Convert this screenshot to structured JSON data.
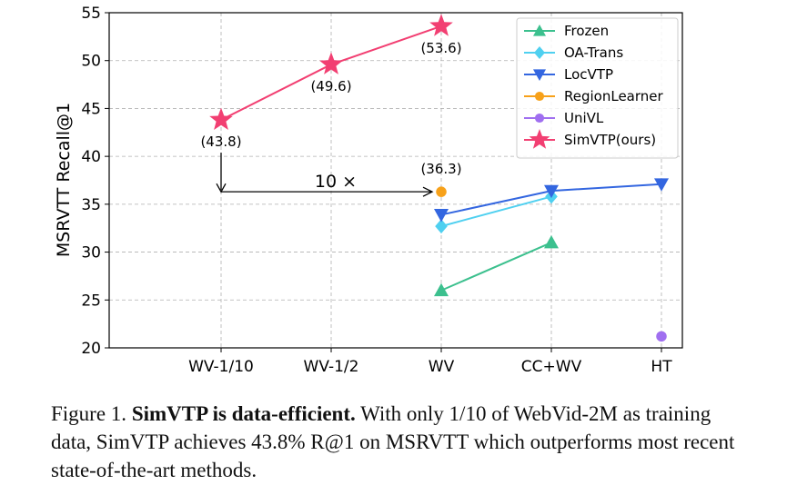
{
  "chart_data": {
    "type": "line",
    "categories": [
      "WV-1/10",
      "WV-1/2",
      "WV",
      "CC+WV",
      "HT"
    ],
    "ylabel": "MSRVTT  Recall@1",
    "xlabel": "",
    "ylim": [
      20,
      55
    ],
    "yticks": [
      "20",
      "25",
      "30",
      "35",
      "40",
      "45",
      "50",
      "55"
    ],
    "grid": true,
    "legend_position": "top-right",
    "series": [
      {
        "name": "Frozen",
        "color": "#3cc08e",
        "marker": "triangle-up",
        "points": [
          {
            "x": "WV",
            "y": 26.0
          },
          {
            "x": "CC+WV",
            "y": 31.0
          }
        ]
      },
      {
        "name": "OA-Trans",
        "color": "#4fd0f0",
        "marker": "diamond",
        "points": [
          {
            "x": "WV",
            "y": 32.7
          },
          {
            "x": "CC+WV",
            "y": 35.8
          }
        ]
      },
      {
        "name": "LocVTP",
        "color": "#3366e0",
        "marker": "triangle-down",
        "points": [
          {
            "x": "WV",
            "y": 33.9
          },
          {
            "x": "CC+WV",
            "y": 36.4
          },
          {
            "x": "HT",
            "y": 37.1
          }
        ]
      },
      {
        "name": "RegionLearner",
        "color": "#f7a11a",
        "marker": "circle",
        "points": [
          {
            "x": "WV",
            "y": 36.3
          }
        ]
      },
      {
        "name": "UniVL",
        "color": "#a06ff0",
        "marker": "circle",
        "points": [
          {
            "x": "HT",
            "y": 21.2
          }
        ]
      },
      {
        "name": "SimVTP(ours)",
        "color": "#f23f72",
        "marker": "star",
        "points": [
          {
            "x": "WV-1/10",
            "y": 43.8
          },
          {
            "x": "WV-1/2",
            "y": 49.6
          },
          {
            "x": "WV",
            "y": 53.6
          }
        ]
      }
    ],
    "annotations": [
      {
        "text": "(43.8)",
        "x": "WV-1/10",
        "y": 43.8
      },
      {
        "text": "(49.6)",
        "x": "WV-1/2",
        "y": 49.6
      },
      {
        "text": "(53.6)",
        "x": "WV",
        "y": 53.6
      },
      {
        "text": "(36.3)",
        "x": "WV",
        "y": 36.3
      },
      {
        "text": "10 ×",
        "x": "WV-1/10",
        "y": 36.3
      }
    ]
  },
  "caption": {
    "prefix": "Figure 1. ",
    "bold": "SimVTP is data-efficient.",
    "rest": " With only 1/10 of WebVid-2M as training data, SimVTP achieves 43.8% R@1 on MSRVTT which outperforms most recent state-of-the-art methods."
  }
}
